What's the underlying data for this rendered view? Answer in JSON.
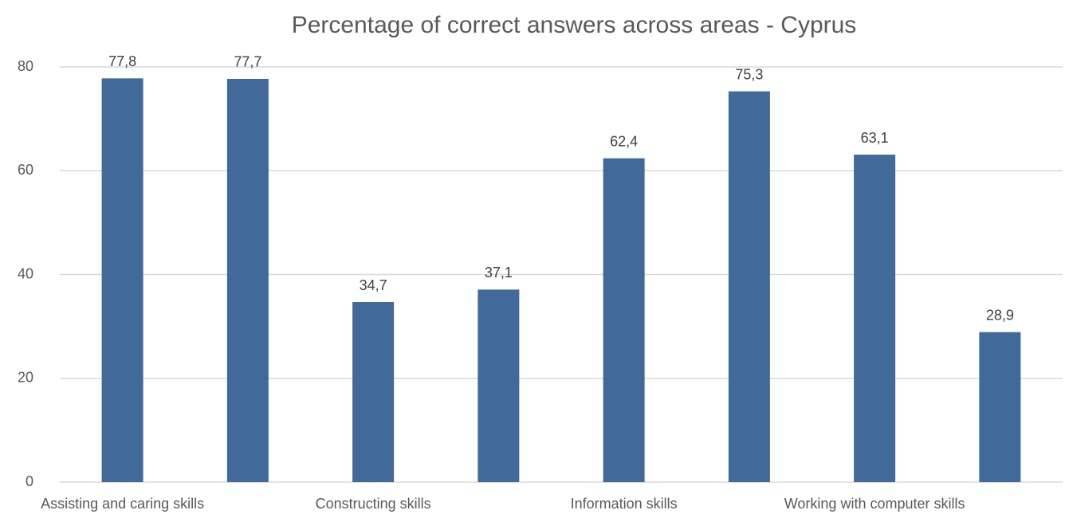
{
  "chart_data": {
    "type": "bar",
    "title": "Percentage of correct answers across areas - Cyprus",
    "categories": [
      "Assisting and caring skills",
      null,
      "Constructing skills",
      null,
      "Information skills",
      null,
      "Working with computer skills",
      null
    ],
    "values": [
      77.8,
      77.7,
      34.7,
      37.1,
      62.4,
      75.3,
      63.1,
      28.9
    ],
    "value_labels": [
      "77,8",
      "77,7",
      "34,7",
      "37,1",
      "62,4",
      "75,3",
      "63,1",
      "28,9"
    ],
    "color": "#41699a",
    "ylim": [
      0,
      80
    ],
    "yticks": [
      0,
      20,
      40,
      60,
      80
    ],
    "grid": true
  }
}
